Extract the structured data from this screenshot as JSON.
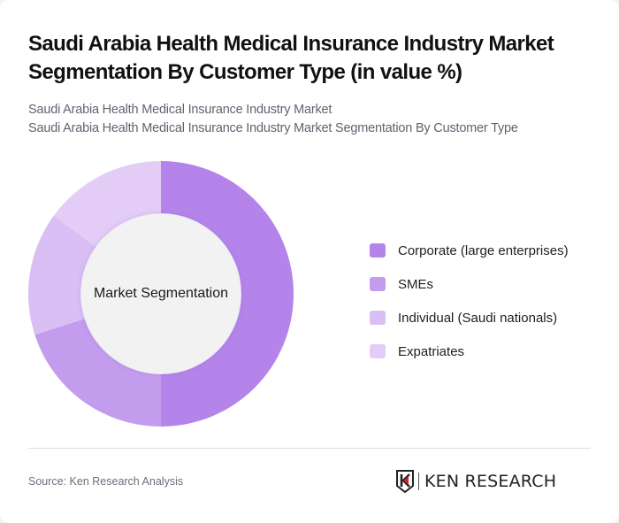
{
  "header": {
    "title": "Saudi Arabia Health Medical Insurance Industry Market Segmentation By Customer Type (in value %)",
    "subtitle_line1": "Saudi Arabia Health Medical Insurance Industry Market",
    "subtitle_line2": "Saudi Arabia Health Medical Insurance Industry Market Segmentation By Customer Type"
  },
  "chart": {
    "center_label": "Market Segmentation"
  },
  "legend": [
    {
      "label": "Corporate (large enterprises)",
      "color": "#b484ea"
    },
    {
      "label": "SMEs",
      "color": "#c49ced"
    },
    {
      "label": "Individual (Saudi nationals)",
      "color": "#d9bff4"
    },
    {
      "label": "Expatriates",
      "color": "#e3cdf7"
    }
  ],
  "footer": {
    "source": "Source: Ken Research Analysis",
    "logo_text": "KEN RESEARCH"
  },
  "chart_data": {
    "type": "pie",
    "subtype": "donut",
    "title": "Saudi Arabia Health Medical Insurance Industry Market Segmentation By Customer Type (in value %)",
    "center_label": "Market Segmentation",
    "categories": [
      "Corporate (large enterprises)",
      "SMEs",
      "Individual (Saudi nationals)",
      "Expatriates"
    ],
    "values": [
      50,
      20,
      15,
      15
    ],
    "colors": [
      "#b484ea",
      "#c49ced",
      "#d9bff4",
      "#e3cdf7"
    ],
    "start_angle": "12 o'clock, clockwise",
    "legend_position": "right",
    "data_labels": false
  }
}
